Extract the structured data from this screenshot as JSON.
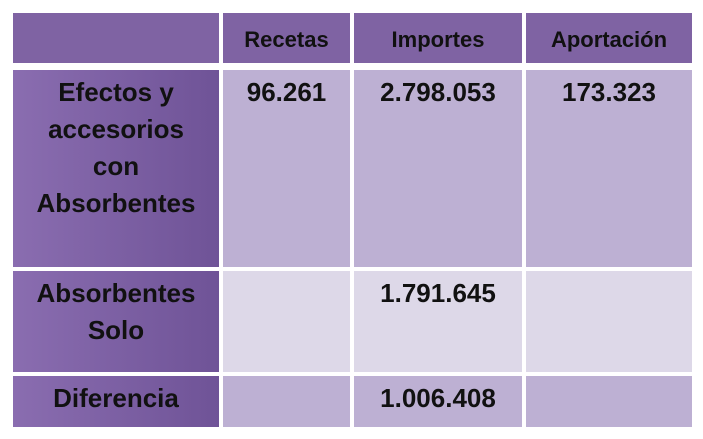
{
  "table": {
    "columns": [
      "Recetas",
      "Importes",
      "Aportación"
    ],
    "rows": [
      {
        "label": "Efectos y accesorios con Absorbentes",
        "values": [
          "96.261",
          "2.798.053",
          "173.323"
        ]
      },
      {
        "label": "Absorbentes Solo",
        "values": [
          null,
          "1.791.645",
          null
        ]
      },
      {
        "label": "Diferencia",
        "values": [
          null,
          "1.006.408",
          null
        ]
      }
    ]
  }
}
